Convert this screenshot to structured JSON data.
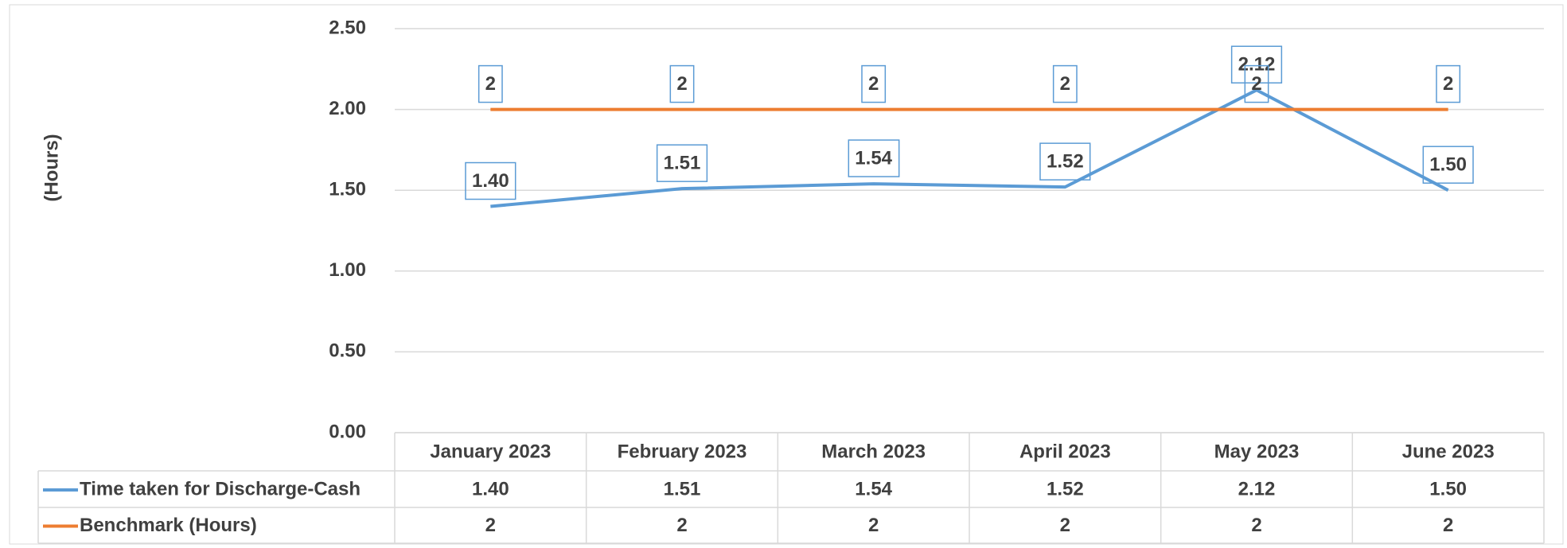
{
  "chart_data": {
    "type": "line",
    "y_label": "(Hours)",
    "categories": [
      "January 2023",
      "February 2023",
      "March 2023",
      "April 2023",
      "May 2023",
      "June 2023"
    ],
    "series": [
      {
        "name": "Time taken for Discharge-Cash",
        "color": "#5b9bd5",
        "values": [
          1.4,
          1.51,
          1.54,
          1.52,
          2.12,
          1.5
        ],
        "value_labels": [
          "1.40",
          "1.51",
          "1.54",
          "1.52",
          "2.12",
          "1.50"
        ]
      },
      {
        "name": "Benchmark (Hours)",
        "color": "#ed7d31",
        "values": [
          2,
          2,
          2,
          2,
          2,
          2
        ]
      }
    ],
    "ylim": [
      0,
      2.5
    ],
    "yticks": [
      {
        "value": 0,
        "label": "0.00"
      },
      {
        "value": 0.5,
        "label": "0.50"
      },
      {
        "value": 1,
        "label": "1.00"
      },
      {
        "value": 1.5,
        "label": "1.50"
      },
      {
        "value": 2,
        "label": "2.00"
      },
      {
        "value": 2.5,
        "label": "2.50"
      }
    ],
    "grid": true,
    "legend": "table"
  }
}
